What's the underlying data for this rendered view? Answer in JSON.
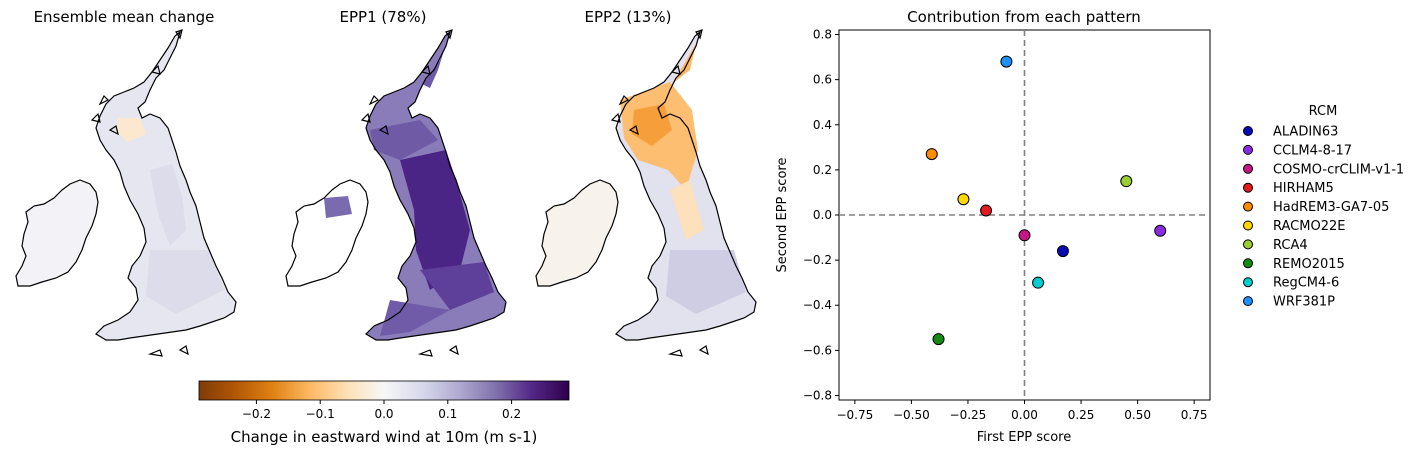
{
  "chart_data": [
    {
      "type": "map",
      "title": "Ensemble mean change"
    },
    {
      "type": "map",
      "title": "EPP1 (78%)"
    },
    {
      "type": "map",
      "title": "EPP2 (13%)"
    },
    {
      "type": "colorbar",
      "label": "Change in eastward wind at 10m (m s-1)",
      "range": [
        -0.29,
        0.29
      ],
      "ticks": [
        -0.2,
        -0.1,
        0.0,
        0.1,
        0.2
      ],
      "tick_labels": [
        "−0.2",
        "−0.1",
        "0.0",
        "0.1",
        "0.2"
      ],
      "colormap": "PuOr"
    },
    {
      "type": "scatter",
      "title": "Contribution from each pattern",
      "xlabel": "First EPP score",
      "ylabel": "Second EPP score",
      "xlim": [
        -0.82,
        0.82
      ],
      "ylim": [
        -0.82,
        0.82
      ],
      "xticks": [
        -0.75,
        -0.5,
        -0.25,
        0.0,
        0.25,
        0.5,
        0.75
      ],
      "xtick_labels": [
        "−0.75",
        "−0.50",
        "−0.25",
        "0.00",
        "0.25",
        "0.50",
        "0.75"
      ],
      "yticks": [
        -0.8,
        -0.6,
        -0.4,
        -0.2,
        0.0,
        0.2,
        0.4,
        0.6,
        0.8
      ],
      "ytick_labels": [
        "−0.8",
        "−0.6",
        "−0.4",
        "−0.2",
        "0.0",
        "0.2",
        "0.4",
        "0.6",
        "0.8"
      ],
      "reference_lines": {
        "x": 0.0,
        "y": 0.0
      },
      "legend_title": "RCM",
      "legend_placement": "right-outside",
      "points": [
        {
          "name": "ALADIN63",
          "x": 0.17,
          "y": -0.16,
          "color": "#0a0ab4"
        },
        {
          "name": "CCLM4-8-17",
          "x": 0.6,
          "y": -0.07,
          "color": "#8a2be2"
        },
        {
          "name": "COSMO-crCLIM-v1-1",
          "x": 0.0,
          "y": -0.09,
          "color": "#c71585"
        },
        {
          "name": "HIRHAM5",
          "x": -0.17,
          "y": 0.02,
          "color": "#e41a1c"
        },
        {
          "name": "HadREM3-GA7-05",
          "x": -0.41,
          "y": 0.27,
          "color": "#ff8c00"
        },
        {
          "name": "RACMO22E",
          "x": -0.27,
          "y": 0.07,
          "color": "#ffd700"
        },
        {
          "name": "RCA4",
          "x": 0.45,
          "y": 0.15,
          "color": "#9acd32"
        },
        {
          "name": "REMO2015",
          "x": -0.38,
          "y": -0.55,
          "color": "#138b13"
        },
        {
          "name": "RegCM4-6",
          "x": 0.06,
          "y": -0.3,
          "color": "#00ced1"
        },
        {
          "name": "WRF381P",
          "x": -0.08,
          "y": 0.68,
          "color": "#1e90ff"
        }
      ]
    }
  ]
}
